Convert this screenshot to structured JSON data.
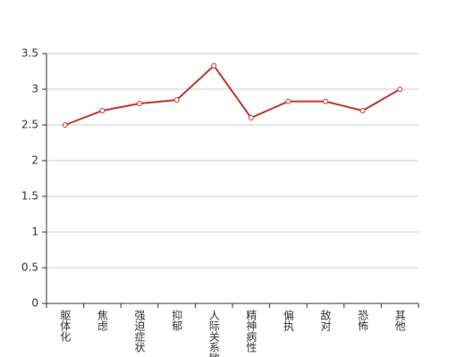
{
  "chart_data": {
    "type": "line",
    "categories": [
      "躯体化",
      "焦虑",
      "强迫症状",
      "抑郁",
      "人际关系敏感",
      "精神病性",
      "偏执",
      "敌对",
      "恐怖",
      "其他"
    ],
    "series": [
      {
        "color": "#c23531",
        "values": [
          2.5,
          2.7,
          2.8,
          2.85,
          3.33,
          2.6,
          2.83,
          2.83,
          2.7,
          3.0
        ]
      }
    ],
    "ylim": [
      0,
      3.5
    ],
    "yticks": [
      0,
      0.5,
      1,
      1.5,
      2,
      2.5,
      3,
      3.5
    ],
    "grid": true
  }
}
